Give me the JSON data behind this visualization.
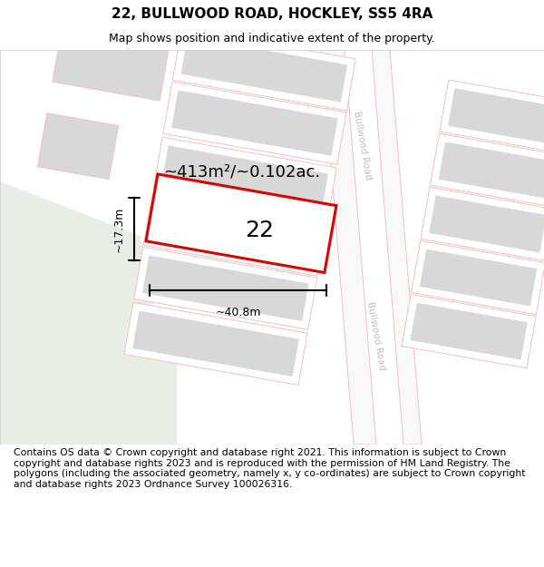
{
  "title": "22, BULLWOOD ROAD, HOCKLEY, SS5 4RA",
  "subtitle": "Map shows position and indicative extent of the property.",
  "footer": "Contains OS data © Crown copyright and database right 2021. This information is subject to Crown copyright and database rights 2023 and is reproduced with the permission of HM Land Registry. The polygons (including the associated geometry, namely x, y co-ordinates) are subject to Crown copyright and database rights 2023 Ordnance Survey 100026316.",
  "area_label": "~413m²/~0.102ac.",
  "width_label": "~40.8m",
  "height_label": "~17.3m",
  "plot_number": "22",
  "map_bg": "#ffffff",
  "road_line_color": "#f0c0c0",
  "plot_outline_color": "#dd0000",
  "building_fill": "#d8d8d8",
  "building_edge": "#d8d8d8",
  "green_area": "#e8ede5",
  "road_label_color": "#c0c0c0",
  "title_fontsize": 11,
  "subtitle_fontsize": 9,
  "footer_fontsize": 7.8,
  "area_fontsize": 13,
  "dim_fontsize": 9,
  "plot_label_fontsize": 18,
  "road_label_fontsize": 7.5
}
